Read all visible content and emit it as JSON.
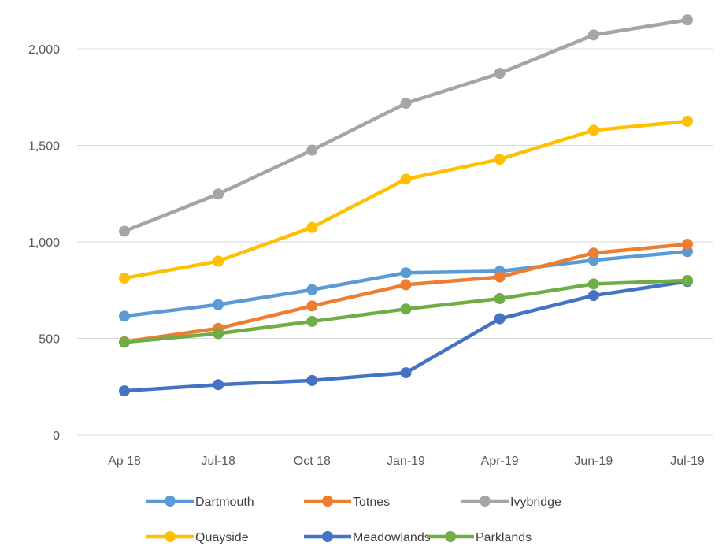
{
  "chart_data": {
    "type": "line",
    "title": "",
    "xlabel": "",
    "ylabel": "",
    "categories": [
      "Ap 18",
      "Jul-18",
      "Oct 18",
      "Jan-19",
      "Apr-19",
      "Jun-19",
      "Jul-19"
    ],
    "ylim": [
      0,
      2200
    ],
    "yticks": [
      0,
      500,
      1000,
      1500,
      2000
    ],
    "ytick_labels": [
      "0",
      "500",
      "1,000",
      "1,500",
      "2,000"
    ],
    "grid": true,
    "legend_position": "bottom",
    "series": [
      {
        "name": "Dartmouth",
        "color": "#5b9bd5",
        "values": [
          615,
          675,
          752,
          840,
          848,
          905,
          950
        ]
      },
      {
        "name": "Totnes",
        "color": "#ed7d31",
        "values": [
          482,
          552,
          668,
          778,
          818,
          942,
          988
        ]
      },
      {
        "name": "Ivybridge",
        "color": "#a5a5a5",
        "values": [
          1055,
          1248,
          1475,
          1718,
          1873,
          2072,
          2150
        ]
      },
      {
        "name": "Quayside",
        "color": "#ffc000",
        "values": [
          812,
          900,
          1075,
          1325,
          1428,
          1578,
          1625
        ]
      },
      {
        "name": "Meadowlands",
        "color": "#4472c4",
        "values": [
          228,
          260,
          282,
          322,
          602,
          722,
          795
        ]
      },
      {
        "name": "Parklands",
        "color": "#70ad47",
        "values": [
          480,
          525,
          588,
          652,
          706,
          782,
          800
        ]
      }
    ]
  }
}
